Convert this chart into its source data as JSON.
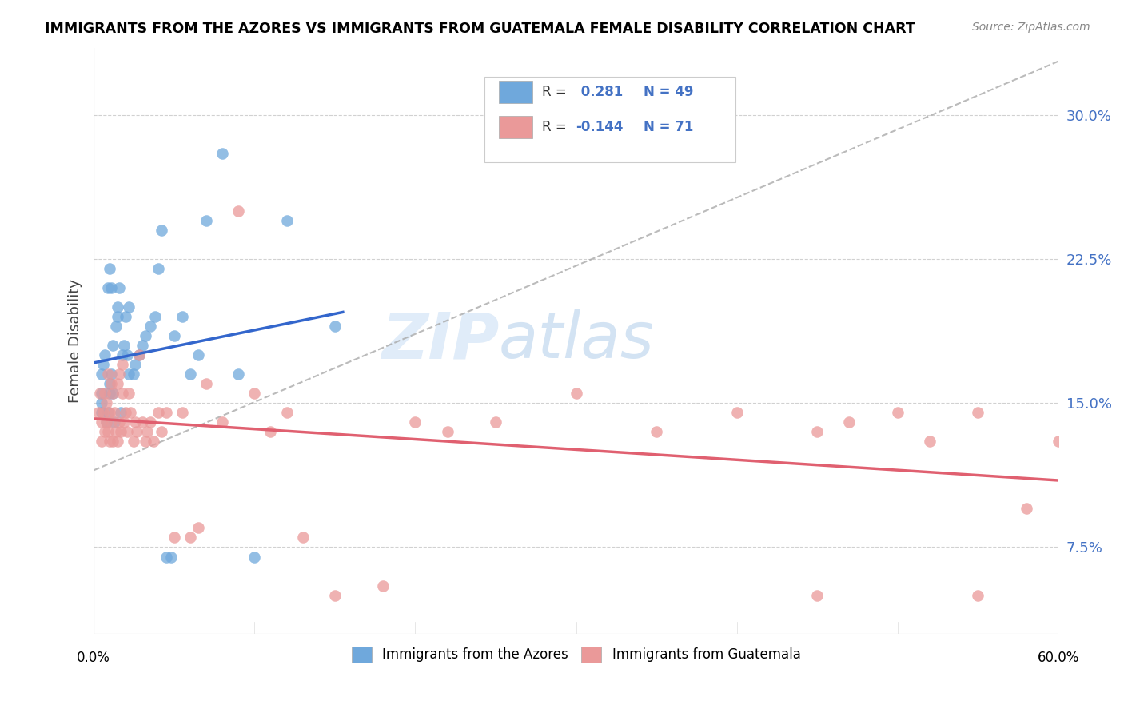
{
  "title": "IMMIGRANTS FROM THE AZORES VS IMMIGRANTS FROM GUATEMALA FEMALE DISABILITY CORRELATION CHART",
  "source": "Source: ZipAtlas.com",
  "ylabel": "Female Disability",
  "ytick_labels": [
    "7.5%",
    "15.0%",
    "22.5%",
    "30.0%"
  ],
  "ytick_values": [
    0.075,
    0.15,
    0.225,
    0.3
  ],
  "xlim": [
    0.0,
    0.6
  ],
  "ylim": [
    0.03,
    0.335
  ],
  "legend_label1": "Immigrants from the Azores",
  "legend_label2": "Immigrants from Guatemala",
  "blue_color": "#6fa8dc",
  "pink_color": "#ea9999",
  "blue_line_color": "#3366cc",
  "pink_line_color": "#e06070",
  "watermark_zip": "ZIP",
  "watermark_atlas": "atlas",
  "azores_x": [
    0.005,
    0.005,
    0.005,
    0.005,
    0.006,
    0.007,
    0.008,
    0.009,
    0.009,
    0.01,
    0.01,
    0.01,
    0.011,
    0.011,
    0.012,
    0.012,
    0.013,
    0.014,
    0.015,
    0.015,
    0.016,
    0.017,
    0.018,
    0.019,
    0.02,
    0.021,
    0.022,
    0.022,
    0.025,
    0.026,
    0.028,
    0.03,
    0.032,
    0.035,
    0.038,
    0.04,
    0.042,
    0.045,
    0.048,
    0.05,
    0.055,
    0.06,
    0.065,
    0.07,
    0.08,
    0.09,
    0.1,
    0.12,
    0.15
  ],
  "azores_y": [
    0.145,
    0.15,
    0.155,
    0.165,
    0.17,
    0.175,
    0.14,
    0.145,
    0.21,
    0.155,
    0.16,
    0.22,
    0.165,
    0.21,
    0.155,
    0.18,
    0.14,
    0.19,
    0.195,
    0.2,
    0.21,
    0.145,
    0.175,
    0.18,
    0.195,
    0.175,
    0.165,
    0.2,
    0.165,
    0.17,
    0.175,
    0.18,
    0.185,
    0.19,
    0.195,
    0.22,
    0.24,
    0.07,
    0.07,
    0.185,
    0.195,
    0.165,
    0.175,
    0.245,
    0.28,
    0.165,
    0.07,
    0.245,
    0.19
  ],
  "guatemala_x": [
    0.003,
    0.004,
    0.005,
    0.005,
    0.006,
    0.007,
    0.007,
    0.008,
    0.008,
    0.009,
    0.009,
    0.01,
    0.01,
    0.011,
    0.011,
    0.012,
    0.012,
    0.013,
    0.014,
    0.015,
    0.015,
    0.016,
    0.016,
    0.017,
    0.018,
    0.018,
    0.019,
    0.02,
    0.021,
    0.022,
    0.023,
    0.025,
    0.026,
    0.027,
    0.028,
    0.03,
    0.032,
    0.033,
    0.035,
    0.037,
    0.04,
    0.042,
    0.045,
    0.05,
    0.055,
    0.06,
    0.065,
    0.07,
    0.08,
    0.09,
    0.1,
    0.11,
    0.12,
    0.13,
    0.15,
    0.18,
    0.2,
    0.22,
    0.25,
    0.3,
    0.35,
    0.4,
    0.45,
    0.47,
    0.5,
    0.52,
    0.55,
    0.58,
    0.6,
    0.55,
    0.45
  ],
  "guatemala_y": [
    0.145,
    0.155,
    0.13,
    0.14,
    0.145,
    0.135,
    0.155,
    0.14,
    0.15,
    0.135,
    0.165,
    0.13,
    0.145,
    0.14,
    0.16,
    0.13,
    0.155,
    0.145,
    0.135,
    0.13,
    0.16,
    0.14,
    0.165,
    0.135,
    0.155,
    0.17,
    0.14,
    0.145,
    0.135,
    0.155,
    0.145,
    0.13,
    0.14,
    0.135,
    0.175,
    0.14,
    0.13,
    0.135,
    0.14,
    0.13,
    0.145,
    0.135,
    0.145,
    0.08,
    0.145,
    0.08,
    0.085,
    0.16,
    0.14,
    0.25,
    0.155,
    0.135,
    0.145,
    0.08,
    0.05,
    0.055,
    0.14,
    0.135,
    0.14,
    0.155,
    0.135,
    0.145,
    0.135,
    0.14,
    0.145,
    0.13,
    0.145,
    0.095,
    0.13,
    0.05,
    0.05
  ]
}
